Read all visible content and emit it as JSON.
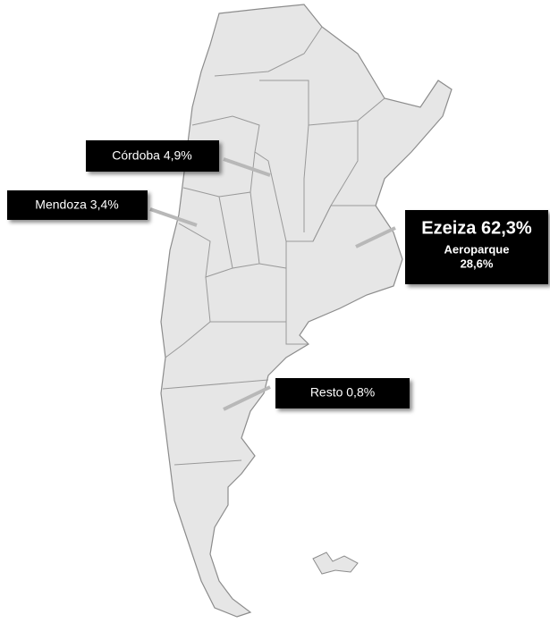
{
  "labels": {
    "cordoba": "Córdoba 4,9%",
    "mendoza": "Mendoza 3,4%",
    "ezeiza": {
      "title": "Ezeiza 62,3%",
      "subtitle": "Aeroparque",
      "value": "28,6%"
    },
    "resto": "Resto 0,8%"
  }
}
